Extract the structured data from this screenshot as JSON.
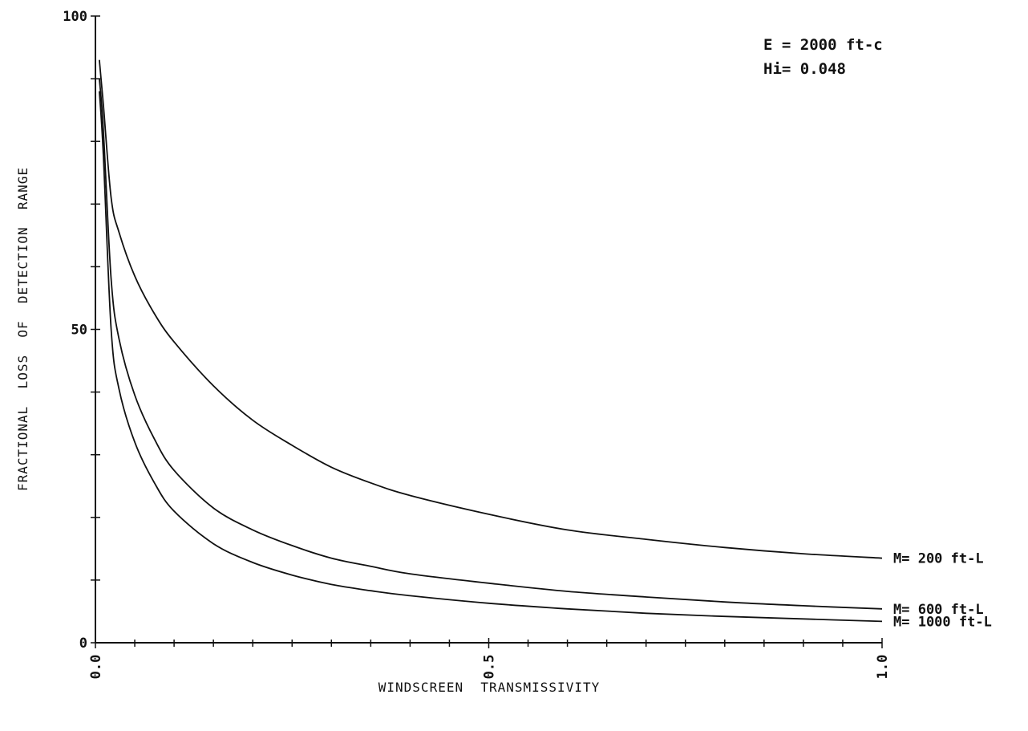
{
  "chart_data": {
    "type": "line",
    "title": "",
    "xlabel": "WINDSCREEN  TRANSMISSIVITY",
    "ylabel": "FRACTIONAL  LOSS  OF  DETECTION  RANGE",
    "xlim": [
      0.0,
      1.0
    ],
    "ylim": [
      0,
      100
    ],
    "x_tick_labels": [
      "0.0",
      "0.5",
      "1.0"
    ],
    "x_tick_values": [
      0.0,
      0.5,
      1.0
    ],
    "y_tick_labels": [
      "0",
      "50",
      "100"
    ],
    "y_tick_values": [
      0,
      50,
      100
    ],
    "grid": false,
    "annotations": [
      "E = 2000 ft-c",
      "Hi= 0.048"
    ],
    "series": [
      {
        "name": "M= 200 ft-L",
        "x": [
          0.005,
          0.01,
          0.02,
          0.03,
          0.05,
          0.075,
          0.1,
          0.15,
          0.2,
          0.25,
          0.3,
          0.35,
          0.4,
          0.5,
          0.6,
          0.7,
          0.8,
          0.9,
          1.0
        ],
        "y": [
          93,
          86,
          71,
          65.5,
          58.5,
          52.5,
          48,
          41,
          35.5,
          31.5,
          28,
          25.5,
          23.5,
          20.5,
          18,
          16.5,
          15.2,
          14.2,
          13.5
        ]
      },
      {
        "name": "M= 600 ft-L",
        "x": [
          0.005,
          0.01,
          0.02,
          0.03,
          0.05,
          0.075,
          0.1,
          0.15,
          0.2,
          0.25,
          0.3,
          0.35,
          0.4,
          0.5,
          0.6,
          0.7,
          0.8,
          0.9,
          1.0
        ],
        "y": [
          90,
          82,
          58,
          48.5,
          39.5,
          32.5,
          27.5,
          21.5,
          18,
          15.5,
          13.5,
          12.2,
          11,
          9.5,
          8.2,
          7.3,
          6.5,
          5.9,
          5.4
        ]
      },
      {
        "name": "M= 1000 ft-L",
        "x": [
          0.005,
          0.01,
          0.02,
          0.03,
          0.05,
          0.075,
          0.1,
          0.15,
          0.2,
          0.25,
          0.3,
          0.35,
          0.4,
          0.5,
          0.6,
          0.7,
          0.8,
          0.9,
          1.0
        ],
        "y": [
          88,
          78,
          50,
          40.5,
          32,
          25.5,
          21,
          15.8,
          12.8,
          10.8,
          9.3,
          8.3,
          7.5,
          6.3,
          5.4,
          4.7,
          4.2,
          3.8,
          3.4
        ]
      }
    ]
  }
}
